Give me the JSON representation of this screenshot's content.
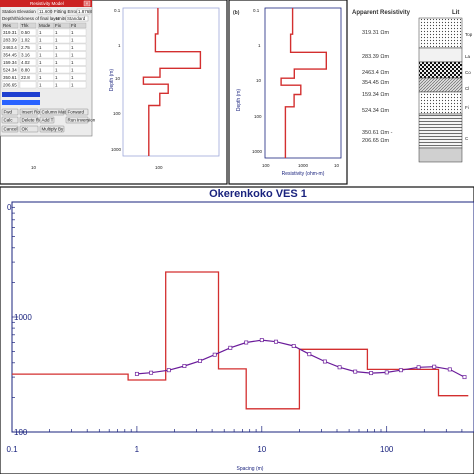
{
  "panel_a": {
    "window_title": "Resistivity Model",
    "fields": [
      {
        "label": "Station Elevation",
        "value": "11.600"
      },
      {
        "label": "Fitting Error",
        "value": "1.8768"
      }
    ],
    "depth_option": "Depth/thickness of final layer",
    "units_label": "Units",
    "units_value": "Standard",
    "table_headers": [
      "Res",
      "Thk",
      "Mode",
      "Fix",
      "Fit"
    ],
    "table_rows": [
      [
        "319.31",
        "0.50",
        "1",
        "1",
        "1"
      ],
      [
        "283.39",
        "1.02",
        "1",
        "1",
        "1"
      ],
      [
        "2463.4",
        "2.75",
        "1",
        "1",
        "1"
      ],
      [
        "354.45",
        "3.16",
        "1",
        "1",
        "1"
      ],
      [
        "159.34",
        "4.02",
        "1",
        "1",
        "1"
      ],
      [
        "524.34",
        "8.80",
        "1",
        "1",
        "1"
      ],
      [
        "350.61",
        "22.8",
        "1",
        "1",
        "1"
      ],
      [
        "206.65",
        "",
        "1",
        "1",
        "1"
      ]
    ],
    "buttons": [
      "Fwd",
      "Insert Row",
      "Column Math",
      "Forward",
      "Calc",
      "Delete Row",
      "Add T",
      "Run Inversion",
      "Cancel",
      "OK",
      "Multiply By"
    ],
    "chart_xlabel": "",
    "chart_ylabel": "Depth (m)",
    "tick_labels_x": [
      "10",
      "100"
    ],
    "tick_labels_y": [
      "0.1",
      "1",
      "10",
      "100",
      "1000"
    ]
  },
  "panel_b": {
    "label": "(b)",
    "ylabel": "Depth (m)",
    "xlabel": "Resistivity (ohm-m)",
    "tick_labels_x": [
      "100",
      "1000",
      "10"
    ],
    "tick_labels_y": [
      "0.1",
      "1",
      "10",
      "100",
      "1000"
    ]
  },
  "panel_c": {
    "col1_title": "Apparent Resistivity",
    "col2_title": "Lit",
    "values": [
      "319.31 Ωm",
      "283.39 Ωm",
      "2463.4 Ωm",
      "354.45 Ωm",
      "159.34 Ωm",
      "524.34 Ωm",
      "350.61 Ωm -",
      "206.65 Ωm"
    ],
    "lith_labels": [
      "Top",
      "La",
      "Co",
      "Cl",
      "Fi",
      "C"
    ]
  },
  "main_chart_title": "Okerenkoko VES 1",
  "chart_data": {
    "type": "line",
    "title": "Okerenkoko VES 1",
    "xlabel": "Spacing (m)",
    "ylabel": "",
    "x_scale": "log",
    "y_scale": "log",
    "xlim": [
      0.1,
      500
    ],
    "ylim": [
      100,
      10000
    ],
    "x_tick_labels": [
      "0.1",
      "1",
      "10",
      "100"
    ],
    "y_tick_labels": [
      "1000",
      "100"
    ],
    "series": [
      {
        "style": "step",
        "color": "#d32f2f",
        "x": [
          0.1,
          0.85,
          0.85,
          1.7,
          1.7,
          4.5,
          4.5,
          7.5,
          7.5,
          20,
          20,
          70,
          70,
          260,
          260,
          450
        ],
        "y": [
          319,
          319,
          283,
          283,
          2463,
          2463,
          354,
          354,
          159,
          159,
          524,
          524,
          350,
          350,
          207,
          207
        ]
      },
      {
        "style": "line-markers",
        "color": "#6a1b9a",
        "x": [
          1.0,
          1.3,
          1.8,
          2.4,
          3.2,
          4.2,
          5.6,
          7.5,
          10,
          13,
          18,
          24,
          32,
          42,
          56,
          75,
          100,
          130,
          180,
          240,
          320,
          420
        ],
        "y": [
          320,
          328,
          345,
          375,
          415,
          470,
          540,
          600,
          630,
          610,
          560,
          475,
          410,
          365,
          335,
          325,
          330,
          345,
          365,
          370,
          350,
          300
        ]
      }
    ]
  },
  "colors": {
    "frame": "#1a237e",
    "model_red": "#d32f2f",
    "curve_purple": "#6a1b9a",
    "window_bar": "#cc2222"
  }
}
